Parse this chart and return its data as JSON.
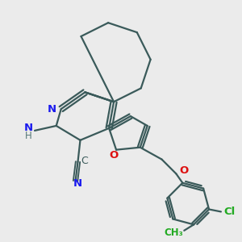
{
  "bg_color": "#ebebeb",
  "bond_color": "#3a5a5a",
  "n_color": "#1a1aee",
  "o_color": "#dd1111",
  "cl_color": "#22aa22",
  "lw": 1.6,
  "figsize": [
    3.0,
    3.0
  ],
  "dpi": 100,
  "xlim": [
    0,
    10
  ],
  "ylim": [
    0,
    10
  ]
}
